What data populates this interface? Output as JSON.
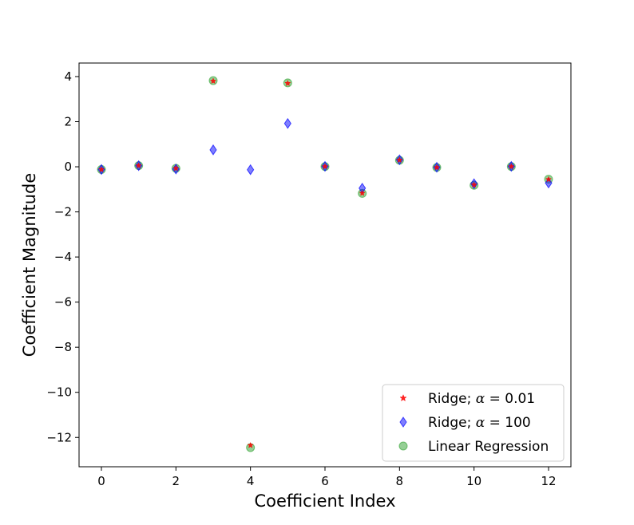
{
  "chart_data": {
    "type": "scatter",
    "xlabel": "Coefficient Index",
    "ylabel": "Coefficient Magnitude",
    "xlim": [
      -0.6,
      12.6
    ],
    "ylim": [
      -13.3,
      4.6
    ],
    "xticks": [
      0,
      2,
      4,
      6,
      8,
      10,
      12
    ],
    "yticks": [
      4,
      2,
      0,
      -2,
      -4,
      -6,
      -8,
      -10,
      -12
    ],
    "ytick_labels": [
      "4",
      "2",
      "0",
      "−2",
      "−4",
      "−6",
      "−8",
      "−10",
      "−12"
    ],
    "grid": false,
    "legend_position": "lower-right",
    "x": [
      0,
      1,
      2,
      3,
      4,
      5,
      6,
      7,
      8,
      9,
      10,
      11,
      12
    ],
    "series": [
      {
        "name": "Linear Regression",
        "marker": "circle",
        "color": "#2ca02c",
        "values": [
          -0.12,
          0.05,
          -0.07,
          3.82,
          -12.45,
          3.72,
          0.01,
          -1.18,
          0.29,
          -0.03,
          -0.82,
          0.01,
          -0.55
        ]
      },
      {
        "name": "Ridge; α = 100",
        "marker": "diamond",
        "color": "#0000ff",
        "values": [
          -0.12,
          0.05,
          -0.1,
          0.75,
          -0.13,
          1.92,
          0.02,
          -0.95,
          0.31,
          -0.02,
          -0.75,
          0.02,
          -0.72
        ]
      },
      {
        "name": "Ridge; α = 0.01",
        "marker": "star",
        "color": "#ff0000",
        "values": [
          -0.12,
          0.05,
          -0.07,
          3.8,
          -12.35,
          3.7,
          0.01,
          -1.17,
          0.3,
          -0.03,
          -0.8,
          0.01,
          -0.56
        ]
      }
    ],
    "legend": [
      {
        "prefix": "Ridge; ",
        "symbol": "α",
        "suffix": " = 0.01",
        "marker": "star",
        "color": "#ff0000"
      },
      {
        "prefix": "Ridge; ",
        "symbol": "α",
        "suffix": " = 100",
        "marker": "diamond",
        "color": "#0000ff"
      },
      {
        "prefix": "Linear Regression",
        "symbol": "",
        "suffix": "",
        "marker": "circle",
        "color": "#2ca02c"
      }
    ]
  }
}
